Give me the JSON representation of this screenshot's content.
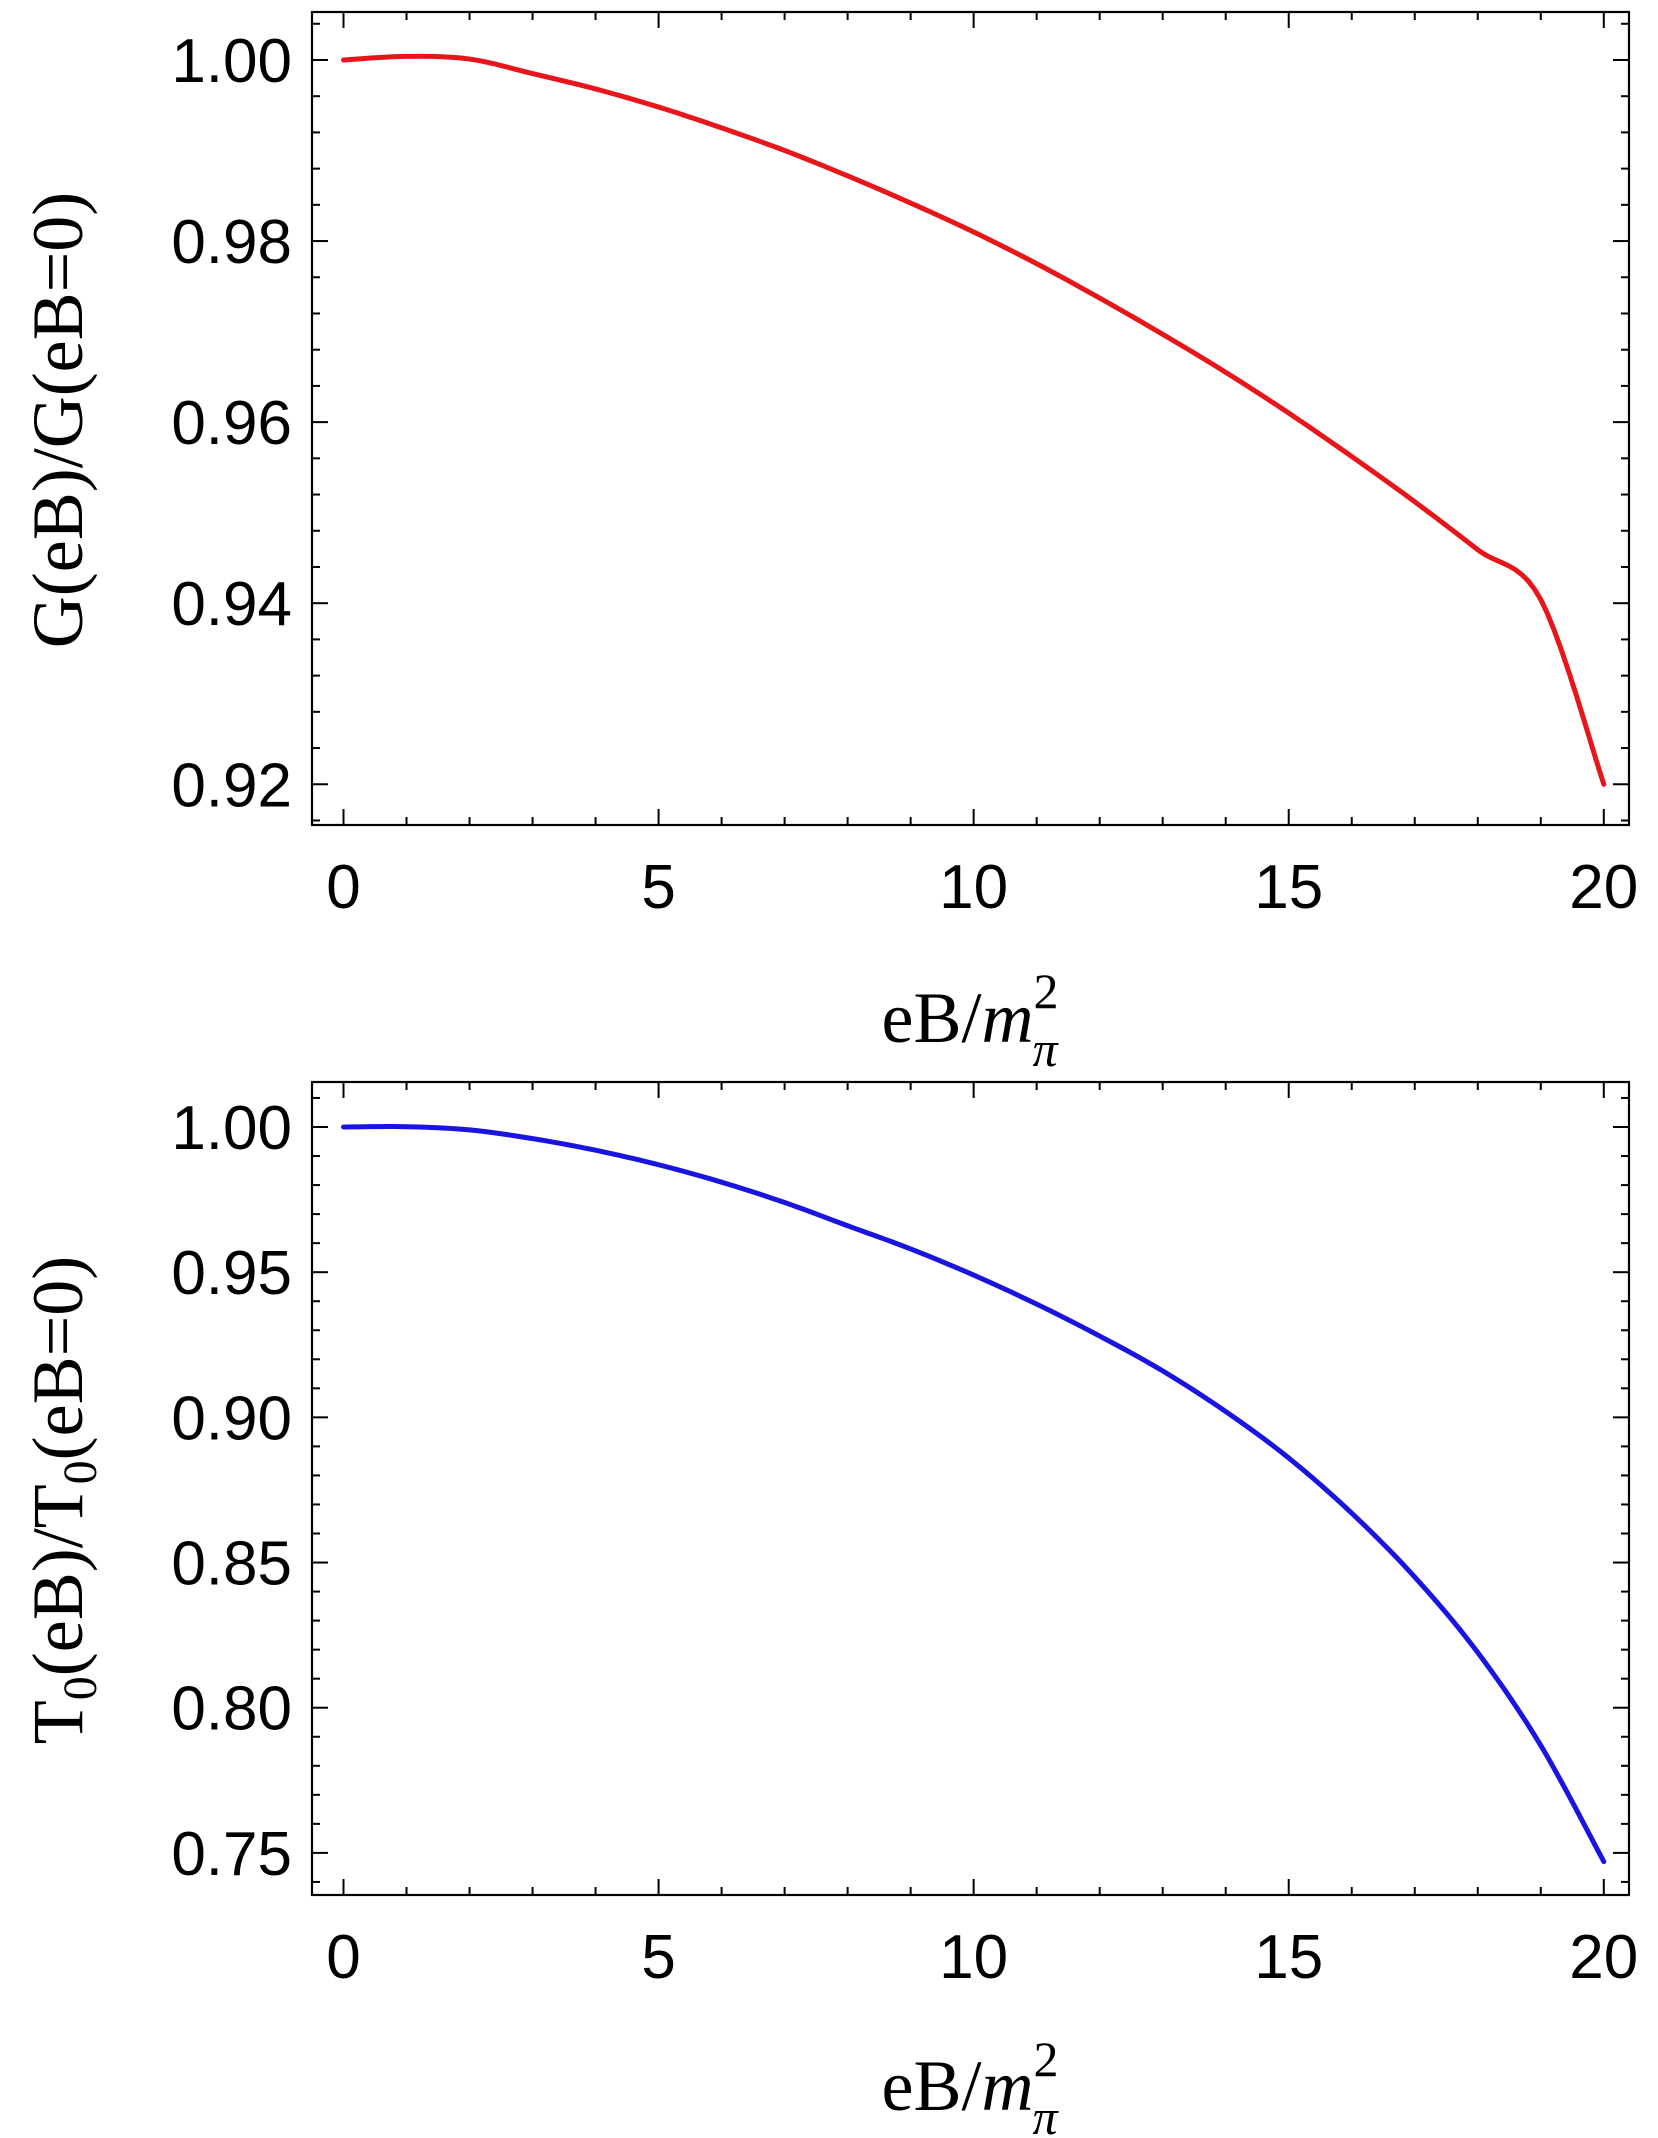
{
  "chart_data": [
    {
      "type": "line",
      "title": "",
      "xlabel": {
        "main": "eB/",
        "var": "m",
        "sup": "2",
        "sub": "π"
      },
      "ylabel": {
        "text": "G(eB)/G(eB=0)"
      },
      "xlim": [
        -0.5,
        20.4
      ],
      "ylim": [
        0.9155,
        1.0053
      ],
      "xticks": [
        0,
        5,
        10,
        15,
        20
      ],
      "xtick_labels": [
        "0",
        "5",
        "10",
        "15",
        "20"
      ],
      "yticks": [
        0.92,
        0.94,
        0.96,
        0.98,
        1.0
      ],
      "ytick_labels": [
        "0.92",
        "0.94",
        "0.96",
        "0.98",
        "1.00"
      ],
      "grid": false,
      "series": [
        {
          "color": "#e8151b",
          "x": [
            0,
            1,
            2,
            3,
            4,
            5,
            6,
            7,
            8,
            9,
            10,
            11,
            12,
            13,
            14,
            15,
            16,
            17,
            18,
            19,
            20
          ],
          "y": [
            1.0,
            1.0004,
            1.0001,
            0.9985,
            0.9968,
            0.9948,
            0.9925,
            0.99,
            0.9872,
            0.9842,
            0.981,
            0.9775,
            0.9737,
            0.9697,
            0.9655,
            0.961,
            0.9562,
            0.9512,
            0.9459,
            0.9404,
            0.92
          ]
        }
      ]
    },
    {
      "type": "line",
      "title": "",
      "xlabel": {
        "main": "eB/",
        "var": "m",
        "sup": "2",
        "sub": "π"
      },
      "ylabel": {
        "T1": "T",
        "s1": "0",
        "mid": "(eB)/T",
        "s2": "0",
        "end": "(eB=0)"
      },
      "xlim": [
        -0.5,
        20.4
      ],
      "ylim": [
        0.7355,
        1.0155
      ],
      "xticks": [
        0,
        5,
        10,
        15,
        20
      ],
      "xtick_labels": [
        "0",
        "5",
        "10",
        "15",
        "20"
      ],
      "yticks": [
        0.75,
        0.8,
        0.85,
        0.9,
        0.95,
        1.0
      ],
      "ytick_labels": [
        "0.75",
        "0.80",
        "0.85",
        "0.90",
        "0.95",
        "1.00"
      ],
      "grid": false,
      "series": [
        {
          "color": "#1a14e0",
          "x": [
            0,
            1,
            2,
            3,
            4,
            5,
            6,
            7,
            8,
            9,
            10,
            11,
            12,
            13,
            14,
            15,
            16,
            17,
            18,
            19,
            20
          ],
          "y": [
            1.0,
            1.0001,
            0.999,
            0.996,
            0.992,
            0.987,
            0.981,
            0.974,
            0.966,
            0.958,
            0.949,
            0.939,
            0.928,
            0.916,
            0.902,
            0.886,
            0.867,
            0.845,
            0.819,
            0.787,
            0.747
          ]
        }
      ]
    }
  ]
}
